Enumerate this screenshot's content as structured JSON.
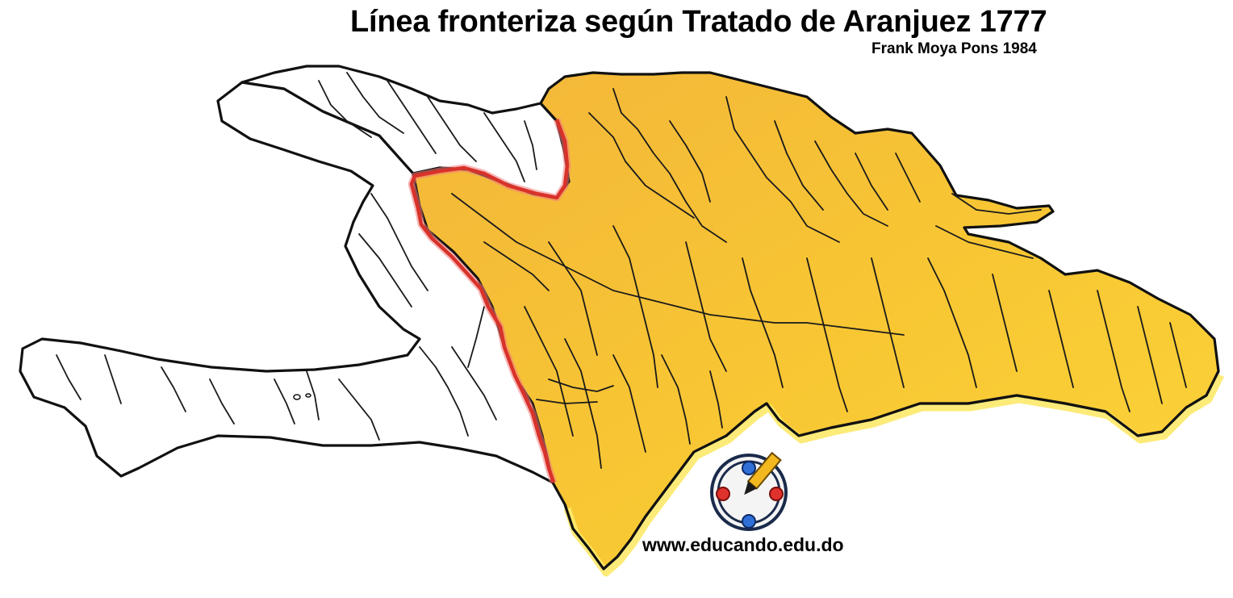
{
  "title": "Línea fronteriza según Tratado de Aranjuez 1777",
  "subtitle": "Frank Moya Pons 1984",
  "website": "www.educando.edu.do",
  "logo": "educando-logo",
  "colors": {
    "spanish_territory": "#f7c531",
    "spanish_territory_edge": "#fde96a",
    "french_territory": "#ffffff",
    "border_line": "#d8322a",
    "coastline": "#111111",
    "rivers": "#1a1a1a"
  }
}
